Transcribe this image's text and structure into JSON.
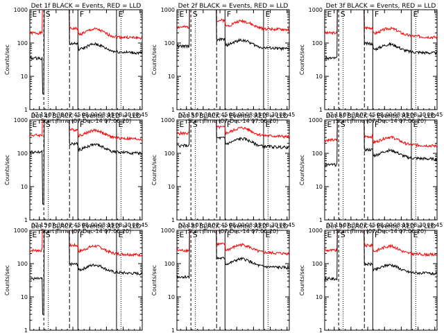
{
  "chart_data": {
    "type": "line",
    "y_scale": "log",
    "ylabel": "Counts/sec",
    "xlabel": "Start Time (07-Dec-14 07:06:20)",
    "x_ticks": [
      "07:15",
      "07:30",
      "07:45",
      "08:00",
      "08:15",
      "08:30",
      "08:45"
    ],
    "y_ticks": [
      "1",
      "10",
      "100",
      "1000"
    ],
    "region_labels": [
      "E",
      "S",
      "F",
      "E"
    ],
    "series_colors": {
      "events": "#000000",
      "lld": "#ff0000"
    },
    "panels": [
      {
        "title": "Det 1f BLACK = Events, RED = LLD",
        "ylim": [
          1,
          1000
        ]
      },
      {
        "title": "Det 2f BLACK = Events, RED = LLD",
        "ylim": [
          1,
          1000
        ]
      },
      {
        "title": "Det 3f BLACK = Events, RED = LLD",
        "ylim": [
          1,
          1000
        ]
      },
      {
        "title": "Det 4f BLACK = Events, RED = LLD",
        "ylim": [
          1,
          1000
        ]
      },
      {
        "title": "Det 5f BLACK = Events, RED = LLD",
        "ylim": [
          1,
          1000
        ]
      },
      {
        "title": "Det 6f BLACK = Events, RED = LLD",
        "ylim": [
          1,
          1000
        ]
      },
      {
        "title": "Det 7f BLACK = Events, RED = LLD",
        "ylim": [
          1,
          1000
        ]
      },
      {
        "title": "Det 8f BLACK = Events, RED = LLD",
        "ylim": [
          1,
          1000
        ]
      },
      {
        "title": "Det 9f BLACK = Events, RED = LLD",
        "ylim": [
          1,
          1000
        ]
      }
    ]
  }
}
